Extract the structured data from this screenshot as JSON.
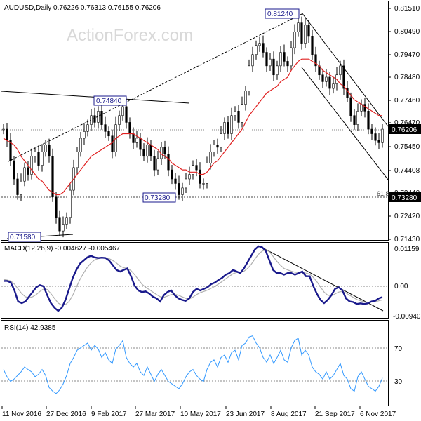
{
  "chart_data": {
    "type": "line",
    "watermark": "ActionForex.com",
    "x_ticks": [
      "11 Nov 2016",
      "27 Dec 2016",
      "9 Feb 2017",
      "27 Mar 2017",
      "10 May 2017",
      "23 Jun 2017",
      "8 Aug 2017",
      "21 Sep 2017",
      "6 Nov 2017"
    ],
    "panels": {
      "price": {
        "header": "AUDUSD,Daily  0.76226  0.76313  0.76155  0.76206",
        "ylim": [
          0.713,
          0.8185
        ],
        "y_ticks": [
          "0.81510",
          "0.80490",
          "0.79470",
          "0.78480",
          "0.77460",
          "0.76470",
          "0.75450",
          "0.74408",
          "0.73440",
          "0.72420",
          "0.71430"
        ],
        "current_value": "0.76206",
        "level_label": "0.73280",
        "fib_label": "61.8",
        "annotations": [
          "0.81240",
          "0.74840",
          "0.73280",
          "0.71580"
        ],
        "series": [
          {
            "name": "close",
            "values": [
              0.762,
              0.757,
              0.748,
              0.74,
              0.733,
              0.739,
              0.745,
              0.742,
              0.75,
              0.752,
              0.746,
              0.752,
              0.755,
              0.75,
              0.732,
              0.723,
              0.717,
              0.72,
              0.723,
              0.735,
              0.745,
              0.752,
              0.758,
              0.761,
              0.764,
              0.768,
              0.765,
              0.77,
              0.764,
              0.761,
              0.759,
              0.752,
              0.764,
              0.768,
              0.772,
              0.765,
              0.76,
              0.756,
              0.758,
              0.753,
              0.75,
              0.755,
              0.75,
              0.744,
              0.749,
              0.754,
              0.751,
              0.744,
              0.74,
              0.738,
              0.733,
              0.736,
              0.74,
              0.742,
              0.746,
              0.744,
              0.738,
              0.738,
              0.747,
              0.752,
              0.755,
              0.754,
              0.76,
              0.765,
              0.76,
              0.768,
              0.77,
              0.765,
              0.773,
              0.779,
              0.79,
              0.795,
              0.799,
              0.8,
              0.796,
              0.79,
              0.793,
              0.786,
              0.79,
              0.796,
              0.792,
              0.79,
              0.798,
              0.805,
              0.809,
              0.8,
              0.808,
              0.803,
              0.795,
              0.79,
              0.786,
              0.783,
              0.785,
              0.78,
              0.782,
              0.786,
              0.79,
              0.78,
              0.776,
              0.768,
              0.764,
              0.77,
              0.773,
              0.77,
              0.762,
              0.76,
              0.757,
              0.756,
              0.762
            ]
          },
          {
            "name": "ma",
            "values": [
              0.758,
              0.757,
              0.756,
              0.755,
              0.753,
              0.75,
              0.748,
              0.746,
              0.744,
              0.742,
              0.74,
              0.739,
              0.737,
              0.735,
              0.734,
              0.733,
              0.733,
              0.734,
              0.736,
              0.738,
              0.74,
              0.742,
              0.744,
              0.746,
              0.748,
              0.75,
              0.751,
              0.752,
              0.753,
              0.754,
              0.755,
              0.756,
              0.758,
              0.759,
              0.76,
              0.76,
              0.76,
              0.76,
              0.759,
              0.758,
              0.757,
              0.756,
              0.755,
              0.754,
              0.753,
              0.751,
              0.75,
              0.749,
              0.747,
              0.746,
              0.745,
              0.744,
              0.744,
              0.743,
              0.743,
              0.743,
              0.742,
              0.742,
              0.743,
              0.745,
              0.747,
              0.748,
              0.75,
              0.752,
              0.754,
              0.756,
              0.758,
              0.76,
              0.762,
              0.765,
              0.768,
              0.77,
              0.772,
              0.774,
              0.776,
              0.778,
              0.779,
              0.78,
              0.781,
              0.783,
              0.784,
              0.785,
              0.788,
              0.79,
              0.792,
              0.793,
              0.793,
              0.793,
              0.792,
              0.791,
              0.79,
              0.788,
              0.787,
              0.786,
              0.785,
              0.784,
              0.782,
              0.781,
              0.779,
              0.777,
              0.775,
              0.774,
              0.773,
              0.772,
              0.771,
              0.77,
              0.769,
              0.768,
              0.768
            ]
          }
        ]
      },
      "macd": {
        "header": "MACD(12,26,9) -0.004627 -0.005467",
        "ylim": [
          -0.0112,
          0.0124
        ],
        "y_ticks": [
          "0.01159",
          "0.00",
          "-0.009408"
        ],
        "series": [
          {
            "name": "macd",
            "values": [
              0.0005,
              0.0005,
              0.0,
              -0.0025,
              -0.006,
              -0.0065,
              -0.006,
              -0.0045,
              -0.003,
              -0.0015,
              -0.0008,
              -0.0012,
              -0.004,
              -0.0065,
              -0.008,
              -0.009,
              -0.008,
              -0.0055,
              -0.002,
              0.0015,
              0.004,
              0.006,
              0.007,
              0.008,
              0.0085,
              0.008,
              0.0078,
              0.0079,
              0.0078,
              0.007,
              0.0055,
              0.004,
              0.0035,
              0.004,
              0.0045,
              0.002,
              -0.001,
              -0.0025,
              -0.003,
              -0.0028,
              -0.0035,
              -0.0045,
              -0.005,
              -0.006,
              -0.004,
              -0.003,
              -0.0025,
              -0.004,
              -0.005,
              -0.0055,
              -0.0058,
              -0.005,
              -0.003,
              -0.002,
              -0.0025,
              -0.002,
              -0.0015,
              -0.0005,
              0.0,
              0.0008,
              0.0015,
              0.0025,
              0.003,
              0.004,
              0.0035,
              0.003,
              0.0045,
              0.0065,
              0.0085,
              0.0105,
              0.0115,
              0.0112,
              0.01,
              0.007,
              0.004,
              0.003,
              0.003,
              0.0025,
              0.003,
              0.003,
              0.0025,
              0.003,
              0.0035,
              0.002,
              0.002,
              -0.001,
              -0.0035,
              -0.0055,
              -0.0065,
              -0.0055,
              -0.004,
              -0.002,
              -0.0015,
              -0.0025,
              -0.005,
              -0.006,
              -0.0062,
              -0.0068,
              -0.0066,
              -0.0068,
              -0.0066,
              -0.006,
              -0.0058,
              -0.005,
              -0.0046
            ]
          },
          {
            "name": "signal",
            "values": [
              0.001,
              0.0008,
              0.0005,
              -0.0005,
              -0.002,
              -0.0035,
              -0.0045,
              -0.0048,
              -0.0045,
              -0.0038,
              -0.0028,
              -0.002,
              -0.0022,
              -0.0035,
              -0.005,
              -0.0065,
              -0.0072,
              -0.007,
              -0.006,
              -0.004,
              -0.0015,
              0.001,
              0.003,
              0.0048,
              0.0062,
              0.0072,
              0.0076,
              0.0078,
              0.0078,
              0.0076,
              0.007,
              0.0062,
              0.0052,
              0.0047,
              0.0045,
              0.0038,
              0.0025,
              0.001,
              -0.0005,
              -0.0015,
              -0.0022,
              -0.003,
              -0.0038,
              -0.0045,
              -0.0047,
              -0.0043,
              -0.0038,
              -0.0037,
              -0.004,
              -0.0045,
              -0.005,
              -0.0052,
              -0.0046,
              -0.0038,
              -0.0032,
              -0.0028,
              -0.0024,
              -0.0018,
              -0.0012,
              -0.0005,
              0.0003,
              0.0012,
              0.002,
              0.0028,
              0.0032,
              0.0032,
              0.0036,
              0.0045,
              0.0058,
              0.0075,
              0.009,
              0.01,
              0.0104,
              0.0098,
              0.0083,
              0.0068,
              0.0055,
              0.0045,
              0.004,
              0.0036,
              0.0033,
              0.0032,
              0.0032,
              0.003,
              0.0027,
              0.0017,
              0.0003,
              -0.0014,
              -0.003,
              -0.004,
              -0.0042,
              -0.0036,
              -0.003,
              -0.0028,
              -0.0033,
              -0.004,
              -0.0047,
              -0.0054,
              -0.0058,
              -0.0061,
              -0.0063,
              -0.0062,
              -0.0061,
              -0.0058,
              -0.0055
            ]
          }
        ]
      },
      "rsi": {
        "header": "RSI(14) 42.9385",
        "ylim": [
          20,
          90
        ],
        "y_ticks": [
          "70",
          "30"
        ],
        "series": [
          {
            "name": "rsi",
            "values": [
              50,
              44,
              40,
              42,
              45,
              48,
              52,
              50,
              48,
              44,
              46,
              50,
              45,
              35,
              32,
              30,
              33,
              38,
              45,
              55,
              60,
              66,
              68,
              70,
              72,
              66,
              70,
              67,
              60,
              64,
              58,
              55,
              67,
              70,
              74,
              60,
              55,
              52,
              55,
              48,
              45,
              52,
              46,
              40,
              46,
              50,
              45,
              40,
              38,
              36,
              34,
              38,
              44,
              48,
              50,
              45,
              42,
              40,
              50,
              56,
              58,
              52,
              60,
              62,
              56,
              64,
              66,
              58,
              70,
              72,
              77,
              78,
              72,
              68,
              60,
              56,
              62,
              55,
              60,
              66,
              58,
              56,
              68,
              74,
              76,
              62,
              66,
              62,
              52,
              48,
              46,
              42,
              48,
              42,
              45,
              50,
              55,
              45,
              42,
              34,
              32,
              44,
              48,
              42,
              36,
              34,
              32,
              36,
              43
            ]
          }
        ]
      }
    }
  }
}
